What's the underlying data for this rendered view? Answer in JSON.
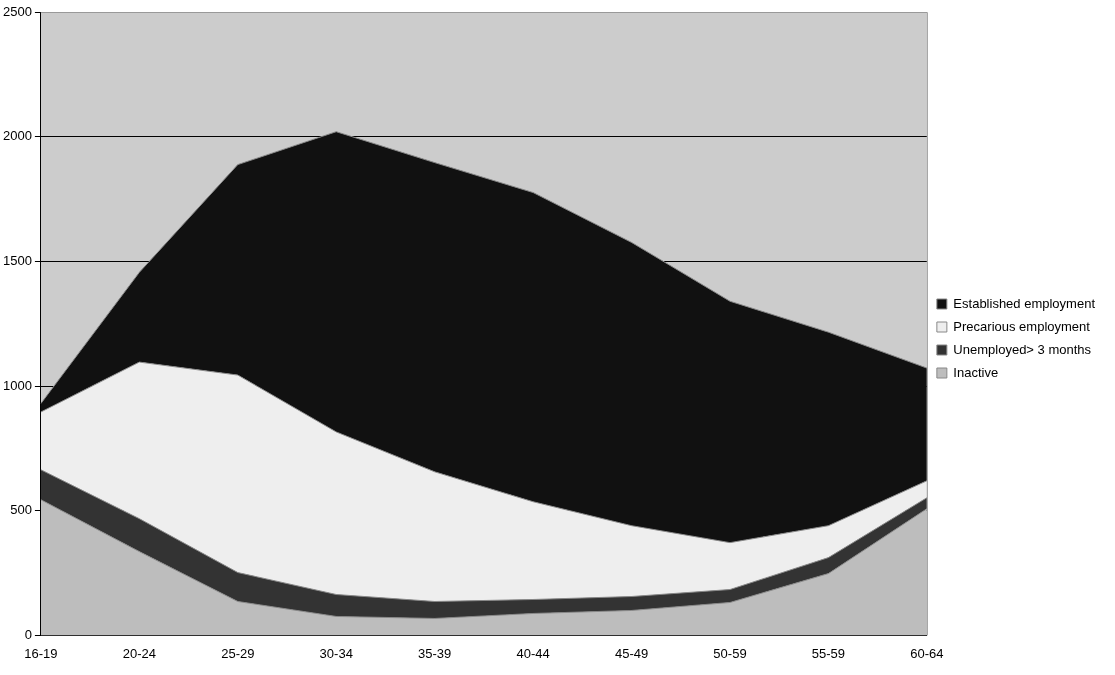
{
  "chart_data": {
    "type": "area",
    "stacked": true,
    "categories": [
      "16-19",
      "20-24",
      "25-29",
      "30-34",
      "35-39",
      "40-44",
      "45-49",
      "50-59",
      "55-59",
      "60-64"
    ],
    "series": [
      {
        "name": "Inactive",
        "color": "#bdbdbd",
        "values": [
          544,
          336,
          136,
          76,
          68,
          88,
          100,
          132,
          248,
          508
        ]
      },
      {
        "name": "Unemployed> 3 months",
        "color": "#333333",
        "values": [
          120,
          132,
          116,
          88,
          68,
          56,
          56,
          52,
          64,
          44
        ]
      },
      {
        "name": "Precarious employment",
        "color": "#eeeeee",
        "values": [
          232,
          628,
          792,
          652,
          520,
          392,
          284,
          188,
          128,
          68
        ]
      },
      {
        "name": "Established employment",
        "color": "#111111",
        "values": [
          34,
          360,
          844,
          1204,
          1240,
          1240,
          1136,
          968,
          776,
          452
        ]
      }
    ],
    "ylim": [
      0,
      2500
    ],
    "yticks": [
      0,
      500,
      1000,
      1500,
      2000,
      2500
    ],
    "grid": "y",
    "legend": "right"
  }
}
